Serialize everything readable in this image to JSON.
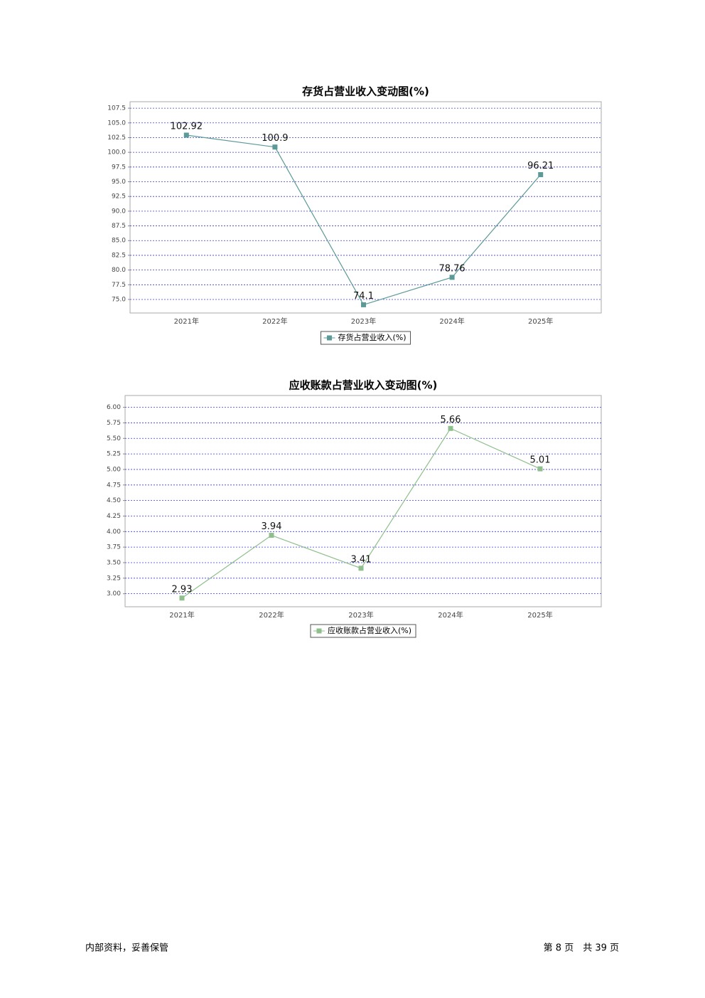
{
  "chart_data": [
    {
      "type": "line",
      "title": "存货占营业收入变动图(%)",
      "categories": [
        "2021年",
        "2022年",
        "2023年",
        "2024年",
        "2025年"
      ],
      "series": [
        {
          "name": "存货占营业收入(%)",
          "color": "#5b9a96",
          "values": [
            102.92,
            100.9,
            74.1,
            78.76,
            96.21
          ]
        }
      ],
      "ylim": [
        72.7,
        108.6
      ],
      "yticks": [
        {
          "value": 75,
          "label": "75.0"
        },
        {
          "value": 77.5,
          "label": "77.5"
        },
        {
          "value": 80,
          "label": "80.0"
        },
        {
          "value": 82.5,
          "label": "82.5"
        },
        {
          "value": 85,
          "label": "85.0"
        },
        {
          "value": 87.5,
          "label": "87.5"
        },
        {
          "value": 90,
          "label": "90.0"
        },
        {
          "value": 92.5,
          "label": "92.5"
        },
        {
          "value": 95,
          "label": "95.0"
        },
        {
          "value": 97.5,
          "label": "97.5"
        },
        {
          "value": 100,
          "label": "100.0"
        },
        {
          "value": 102.5,
          "label": "102.5"
        },
        {
          "value": 105,
          "label": "105.0"
        },
        {
          "value": 107.5,
          "label": "107.5"
        }
      ],
      "grid": true
    },
    {
      "type": "line",
      "title": "应收账款占营业收入变动图(%)",
      "categories": [
        "2021年",
        "2022年",
        "2023年",
        "2024年",
        "2025年"
      ],
      "series": [
        {
          "name": "应收账款占营业收入(%)",
          "color": "#8fbf8c",
          "values": [
            2.93,
            3.94,
            3.41,
            5.66,
            5.01
          ]
        }
      ],
      "ylim": [
        2.79,
        6.19
      ],
      "yticks": [
        {
          "value": 3,
          "label": "3.00"
        },
        {
          "value": 3.25,
          "label": "3.25"
        },
        {
          "value": 3.5,
          "label": "3.50"
        },
        {
          "value": 3.75,
          "label": "3.75"
        },
        {
          "value": 4,
          "label": "4.00"
        },
        {
          "value": 4.25,
          "label": "4.25"
        },
        {
          "value": 4.5,
          "label": "4.50"
        },
        {
          "value": 4.75,
          "label": "4.75"
        },
        {
          "value": 5,
          "label": "5.00"
        },
        {
          "value": 5.25,
          "label": "5.25"
        },
        {
          "value": 5.5,
          "label": "5.50"
        },
        {
          "value": 5.75,
          "label": "5.75"
        },
        {
          "value": 6,
          "label": "6.00"
        }
      ],
      "grid": true
    }
  ],
  "footer": {
    "left": "内部资料，妥善保管",
    "right": "第 8 页　共 39 页"
  }
}
